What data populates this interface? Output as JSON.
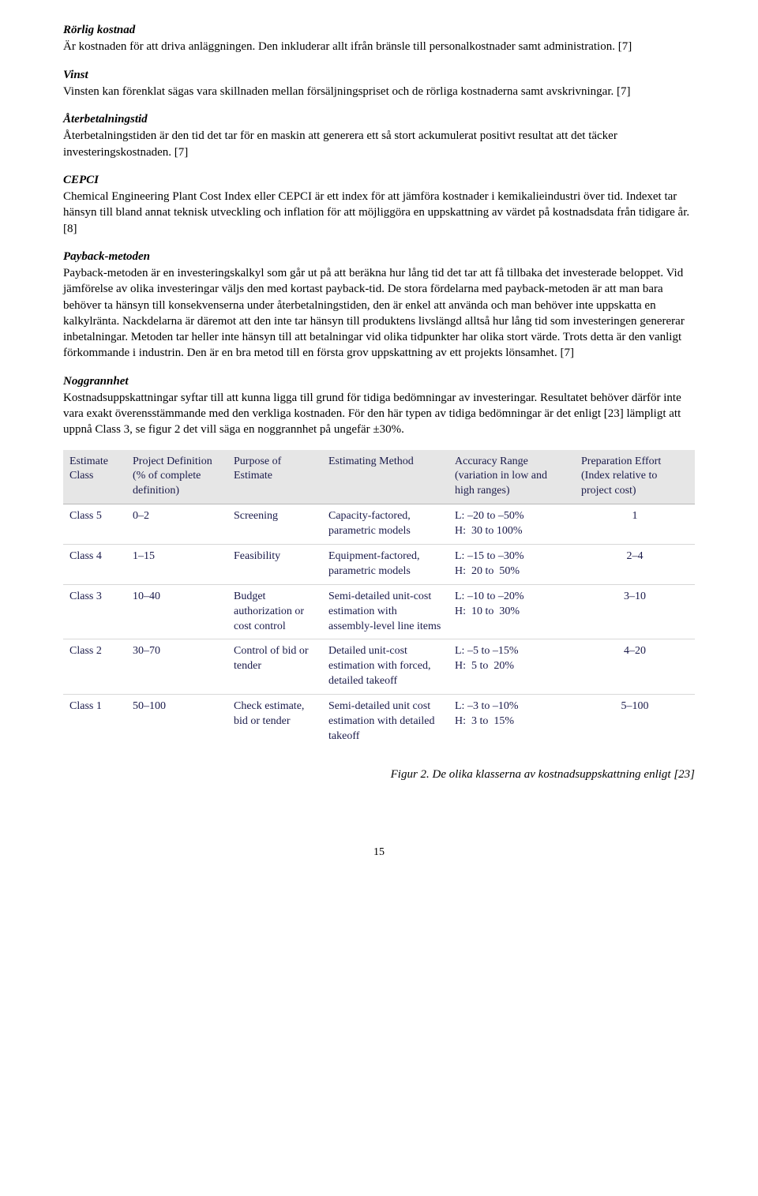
{
  "sections": [
    {
      "heading": "Rörlig kostnad",
      "body": "Är kostnaden för att driva anläggningen. Den inkluderar allt ifrån bränsle till personalkostnader samt administration. [7]"
    },
    {
      "heading": "Vinst",
      "body": "Vinsten kan förenklat sägas vara skillnaden mellan försäljningspriset och de rörliga kostnaderna samt avskrivningar. [7]"
    },
    {
      "heading": "Återbetalningstid",
      "body": "Återbetalningstiden är den tid det tar för en maskin att generera ett så stort ackumulerat positivt resultat att det täcker investeringskostnaden. [7]"
    },
    {
      "heading": "CEPCI",
      "body": "Chemical Engineering Plant Cost Index eller CEPCI är ett index för att jämföra kostnader i kemikalieindustri över tid. Indexet tar hänsyn till bland annat teknisk utveckling och inflation för att möjliggöra en uppskattning av värdet på kostnadsdata från tidigare år. [8]"
    },
    {
      "heading": "Payback-metoden",
      "body": "Payback-metoden är en investeringskalkyl som går ut på att beräkna hur lång tid det tar att få tillbaka det investerade beloppet. Vid jämförelse av olika investeringar väljs den med kortast payback-tid. De stora fördelarna med payback-metoden är att man bara behöver ta hänsyn till konsekvenserna under återbetalningstiden, den är enkel att använda och man behöver inte uppskatta en kalkylränta. Nackdelarna är däremot att den inte tar hänsyn till produktens livslängd alltså hur lång tid som investeringen genererar inbetalningar. Metoden tar heller inte hänsyn till att betalningar vid olika tidpunkter har olika stort värde. Trots detta är den vanligt förkommande i industrin. Den är en bra metod till en första grov uppskattning av ett projekts lönsamhet. [7]"
    },
    {
      "heading": "Noggrannhet",
      "body": "Kostnadsuppskattningar syftar till att kunna ligga till grund för tidiga bedömningar av investeringar. Resultatet behöver därför inte vara exakt överensstämmande med den verkliga kostnaden. För den här typen av tidiga bedömningar är det enligt [23] lämpligt att uppnå Class 3, se figur 2 det vill säga en noggrannhet på ungefär ±30%."
    }
  ],
  "table": {
    "columns": [
      "Estimate Class",
      "Project Definition (% of complete definition)",
      "Purpose of Estimate",
      "Estimating Method",
      "Accuracy Range (variation in low and high ranges)",
      "Preparation Effort (Index relative to project cost)"
    ],
    "rows": [
      [
        "Class 5",
        "0–2",
        "Screening",
        "Capacity-factored, parametric models",
        "L: –20 to –50%\nH:  30 to 100%",
        "1"
      ],
      [
        "Class 4",
        "1–15",
        "Feasibility",
        "Equipment-factored, parametric models",
        "L: –15 to –30%\nH:  20 to  50%",
        "2–4"
      ],
      [
        "Class 3",
        "10–40",
        "Budget authorization or cost control",
        "Semi-detailed unit-cost estimation with assembly-level line items",
        "L: –10 to –20%\nH:  10 to  30%",
        "3–10"
      ],
      [
        "Class 2",
        "30–70",
        "Control of bid or tender",
        "Detailed unit-cost estimation with forced, detailed takeoff",
        "L: –5 to –15%\nH:  5 to  20%",
        "4–20"
      ],
      [
        "Class 1",
        "50–100",
        "Check estimate, bid or tender",
        "Semi-detailed unit cost estimation with detailed takeoff",
        "L: –3 to –10%\nH:  3 to  15%",
        "5–100"
      ]
    ],
    "header_bg": "#e6e6e6",
    "border_color": "#d8d8d8",
    "text_color": "#1a1a4a"
  },
  "figure_caption": "Figur 2. De olika klasserna av kostnadsuppskattning enligt [23]",
  "page_number": "15"
}
